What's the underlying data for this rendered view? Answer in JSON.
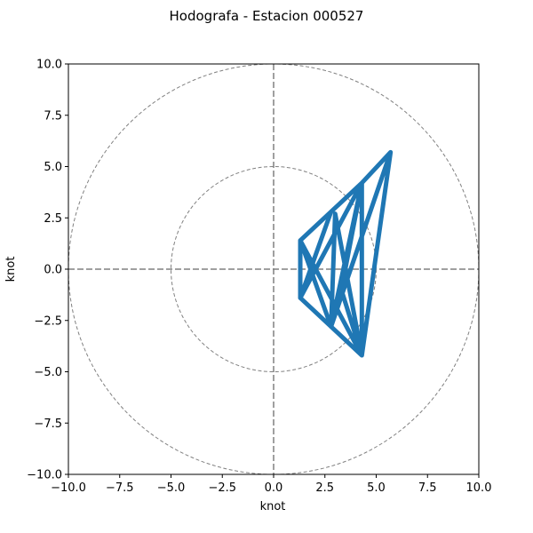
{
  "chart_data": {
    "type": "line",
    "title": "Hodografa - Estacion 000527",
    "xlabel": "knot",
    "ylabel": "knot",
    "xlim": [
      -10,
      10
    ],
    "ylim": [
      -10,
      10
    ],
    "xticks": [
      "−10.0",
      "−7.5",
      "−5.0",
      "−2.5",
      "0.0",
      "2.5",
      "5.0",
      "7.5",
      "10.0"
    ],
    "yticks": [
      "−10.0",
      "−7.5",
      "−5.0",
      "−2.5",
      "0.0",
      "2.5",
      "5.0",
      "7.5",
      "10.0"
    ],
    "tick_values": [
      -10,
      -7.5,
      -5,
      -2.5,
      0,
      2.5,
      5,
      7.5,
      10
    ],
    "range_rings": [
      5,
      10
    ],
    "grid": false,
    "series": [
      {
        "color": "#1f77b4",
        "points": [
          [
            1.3,
            1.4
          ],
          [
            4.3,
            4.2
          ],
          [
            5.7,
            5.7
          ],
          [
            4.3,
            -4.2
          ],
          [
            1.3,
            -1.4
          ],
          [
            4.3,
            4.2
          ],
          [
            2.8,
            -2.8
          ],
          [
            1.3,
            1.4
          ],
          [
            4.3,
            -4.2
          ],
          [
            4.3,
            4.2
          ],
          [
            2.8,
            2.8
          ],
          [
            1.3,
            -1.4
          ],
          [
            1.3,
            1.4
          ],
          [
            2.8,
            -2.8
          ],
          [
            4.3,
            -4.2
          ],
          [
            3.0,
            2.7
          ],
          [
            2.8,
            -2.8
          ],
          [
            5.7,
            5.7
          ],
          [
            2.8,
            -2.8
          ],
          [
            4.3,
            4.2
          ],
          [
            3.3,
            -1.0
          ],
          [
            4.3,
            -4.2
          ],
          [
            5.7,
            5.7
          ]
        ]
      }
    ]
  },
  "colors": {
    "series": "#1f77b4",
    "rings": "#808080",
    "zero_lines": "#808080",
    "axes": "#000000"
  }
}
